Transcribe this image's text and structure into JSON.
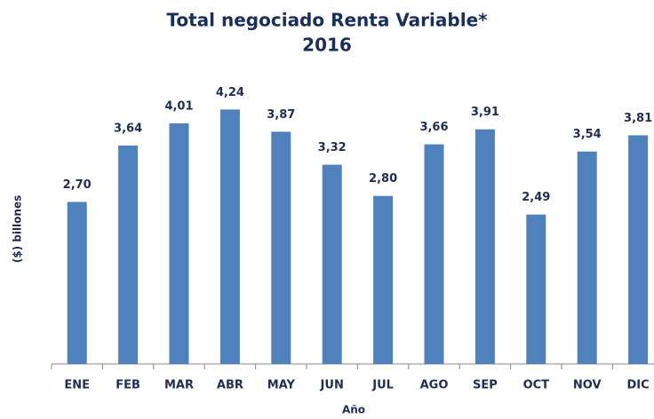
{
  "chart_data": {
    "type": "bar",
    "title": "Total negociado Renta Variable*",
    "subtitle": "2016",
    "y_label": "($) billones",
    "x_label": "Año",
    "categories": [
      "ENE",
      "FEB",
      "MAR",
      "ABR",
      "MAY",
      "JUN",
      "JUL",
      "AGO",
      "SEP",
      "OCT",
      "NOV",
      "DIC"
    ],
    "values": [
      2.7,
      3.64,
      4.01,
      4.24,
      3.87,
      3.32,
      2.8,
      3.66,
      3.91,
      2.49,
      3.54,
      3.81
    ],
    "value_labels": [
      "2,70",
      "3,64",
      "4,01",
      "4,24",
      "3,87",
      "3,32",
      "2,80",
      "3,66",
      "3,91",
      "2,49",
      "3,54",
      "3,81"
    ],
    "color": "#4f81bd",
    "ylim": [
      0,
      5
    ],
    "grid": false
  }
}
